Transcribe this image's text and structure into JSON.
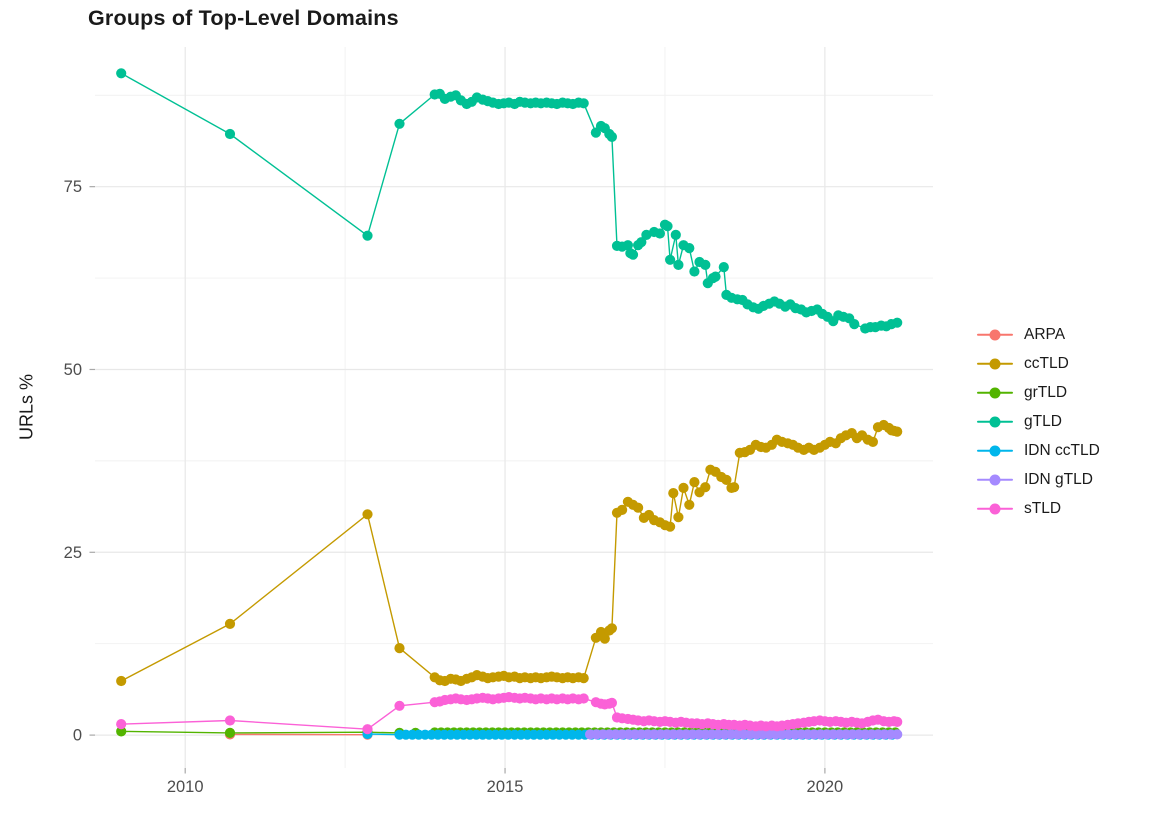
{
  "title": "Groups of Top-Level Domains",
  "chart_data": {
    "type": "line",
    "title": "Groups of Top-Level Domains",
    "xlabel": "",
    "ylabel": "URLs %",
    "grid": true,
    "legend_position": "right",
    "x_range": [
      2008.59,
      2021.69
    ],
    "y_range": [
      -4.5,
      94.1
    ],
    "x_major_ticks": [
      2010,
      2015,
      2020
    ],
    "x_tick_labels": [
      "2010",
      "2015",
      "2020"
    ],
    "x_minor_gridlines": [
      2012.5,
      2017.5
    ],
    "y_major_ticks": [
      0,
      25,
      50,
      75
    ],
    "y_tick_labels": [
      "0",
      "25",
      "50",
      "75"
    ],
    "y_minor_gridlines": [
      12.5,
      37.5,
      62.5,
      87.5
    ],
    "grid_major_color": "#e8e8e8",
    "grid_minor_color": "#f1f1f1",
    "tick_color": "#a8a8a8",
    "tick_label_color": "#4d4d4d",
    "series": [
      {
        "name": "ARPA",
        "color": "#F8766D",
        "points": [
          [
            2010.7,
            0.1
          ],
          [
            2012.85,
            0.05
          ]
        ]
      },
      {
        "name": "ccTLD",
        "color": "#C49A00",
        "points": [
          [
            2009.0,
            7.4
          ],
          [
            2010.7,
            15.2
          ],
          [
            2012.85,
            30.2
          ],
          [
            2013.35,
            11.9
          ],
          [
            2013.9,
            7.9
          ],
          [
            2013.98,
            7.5
          ],
          [
            2014.06,
            7.4
          ],
          [
            2014.15,
            7.7
          ],
          [
            2014.23,
            7.6
          ],
          [
            2014.31,
            7.4
          ],
          [
            2014.4,
            7.7
          ],
          [
            2014.48,
            7.9
          ],
          [
            2014.56,
            8.2
          ],
          [
            2014.65,
            8.0
          ],
          [
            2014.73,
            7.8
          ],
          [
            2014.81,
            7.9
          ],
          [
            2014.9,
            8.0
          ],
          [
            2014.98,
            8.1
          ],
          [
            2015.06,
            7.9
          ],
          [
            2015.15,
            8.0
          ],
          [
            2015.23,
            7.8
          ],
          [
            2015.31,
            7.9
          ],
          [
            2015.4,
            7.8
          ],
          [
            2015.48,
            7.9
          ],
          [
            2015.56,
            7.8
          ],
          [
            2015.65,
            7.9
          ],
          [
            2015.73,
            8.0
          ],
          [
            2015.81,
            7.9
          ],
          [
            2015.9,
            7.8
          ],
          [
            2015.98,
            7.9
          ],
          [
            2016.06,
            7.8
          ],
          [
            2016.15,
            7.9
          ],
          [
            2016.23,
            7.8
          ],
          [
            2016.42,
            13.3
          ],
          [
            2016.5,
            14.1
          ],
          [
            2016.56,
            13.2
          ],
          [
            2016.63,
            14.3
          ],
          [
            2016.67,
            14.6
          ],
          [
            2016.75,
            30.4
          ],
          [
            2016.83,
            30.8
          ],
          [
            2016.92,
            31.9
          ],
          [
            2017.0,
            31.5
          ],
          [
            2017.08,
            31.1
          ],
          [
            2017.17,
            29.7
          ],
          [
            2017.25,
            30.1
          ],
          [
            2017.33,
            29.4
          ],
          [
            2017.42,
            29.1
          ],
          [
            2017.5,
            28.7
          ],
          [
            2017.58,
            28.5
          ],
          [
            2017.63,
            33.1
          ],
          [
            2017.71,
            29.8
          ],
          [
            2017.79,
            33.8
          ],
          [
            2017.88,
            31.5
          ],
          [
            2017.96,
            34.6
          ],
          [
            2018.04,
            33.2
          ],
          [
            2018.13,
            33.9
          ],
          [
            2018.21,
            36.3
          ],
          [
            2018.29,
            36.0
          ],
          [
            2018.38,
            35.3
          ],
          [
            2018.46,
            34.9
          ],
          [
            2018.54,
            33.8
          ],
          [
            2018.58,
            33.9
          ],
          [
            2018.67,
            38.6
          ],
          [
            2018.75,
            38.7
          ],
          [
            2018.83,
            39.0
          ],
          [
            2018.92,
            39.7
          ],
          [
            2019.0,
            39.4
          ],
          [
            2019.08,
            39.3
          ],
          [
            2019.17,
            39.7
          ],
          [
            2019.25,
            40.4
          ],
          [
            2019.33,
            40.1
          ],
          [
            2019.42,
            39.9
          ],
          [
            2019.5,
            39.7
          ],
          [
            2019.58,
            39.3
          ],
          [
            2019.67,
            39.0
          ],
          [
            2019.75,
            39.3
          ],
          [
            2019.83,
            39.0
          ],
          [
            2019.92,
            39.3
          ],
          [
            2020.0,
            39.7
          ],
          [
            2020.08,
            40.1
          ],
          [
            2020.17,
            39.9
          ],
          [
            2020.25,
            40.6
          ],
          [
            2020.33,
            41.0
          ],
          [
            2020.42,
            41.3
          ],
          [
            2020.5,
            40.6
          ],
          [
            2020.58,
            41.0
          ],
          [
            2020.67,
            40.4
          ],
          [
            2020.75,
            40.1
          ],
          [
            2020.83,
            42.1
          ],
          [
            2020.92,
            42.4
          ],
          [
            2021.0,
            42.0
          ],
          [
            2021.04,
            41.7
          ],
          [
            2021.08,
            41.6
          ],
          [
            2021.13,
            41.5
          ]
        ]
      },
      {
        "name": "grTLD",
        "color": "#53B400",
        "points": [
          [
            2009.0,
            0.5
          ],
          [
            2010.7,
            0.3
          ],
          [
            2012.85,
            0.4
          ],
          [
            2013.35,
            0.3
          ],
          [
            2013.6,
            0.3
          ]
        ],
        "runs": [
          {
            "x0": 2013.9,
            "x1": 2021.13,
            "step": 0.1,
            "y": 0.35
          }
        ]
      },
      {
        "name": "gTLD",
        "color": "#00C094",
        "points": [
          [
            2009.0,
            90.5
          ],
          [
            2010.7,
            82.2
          ],
          [
            2012.85,
            68.3
          ],
          [
            2013.35,
            83.6
          ],
          [
            2013.9,
            87.6
          ],
          [
            2013.98,
            87.7
          ],
          [
            2014.06,
            87.0
          ],
          [
            2014.15,
            87.3
          ],
          [
            2014.23,
            87.5
          ],
          [
            2014.31,
            86.8
          ],
          [
            2014.4,
            86.3
          ],
          [
            2014.48,
            86.6
          ],
          [
            2014.56,
            87.2
          ],
          [
            2014.65,
            86.9
          ],
          [
            2014.73,
            86.7
          ],
          [
            2014.81,
            86.5
          ],
          [
            2014.9,
            86.3
          ],
          [
            2014.98,
            86.4
          ],
          [
            2015.06,
            86.5
          ],
          [
            2015.15,
            86.3
          ],
          [
            2015.23,
            86.6
          ],
          [
            2015.31,
            86.5
          ],
          [
            2015.4,
            86.4
          ],
          [
            2015.48,
            86.5
          ],
          [
            2015.56,
            86.4
          ],
          [
            2015.65,
            86.5
          ],
          [
            2015.73,
            86.4
          ],
          [
            2015.81,
            86.3
          ],
          [
            2015.9,
            86.5
          ],
          [
            2015.98,
            86.4
          ],
          [
            2016.06,
            86.3
          ],
          [
            2016.15,
            86.5
          ],
          [
            2016.23,
            86.4
          ],
          [
            2016.42,
            82.4
          ],
          [
            2016.5,
            83.3
          ],
          [
            2016.56,
            83.0
          ],
          [
            2016.63,
            82.2
          ],
          [
            2016.67,
            81.8
          ],
          [
            2016.75,
            66.9
          ],
          [
            2016.83,
            66.8
          ],
          [
            2016.92,
            67.0
          ],
          [
            2016.96,
            65.9
          ],
          [
            2017.0,
            65.7
          ],
          [
            2017.08,
            67.0
          ],
          [
            2017.13,
            67.4
          ],
          [
            2017.21,
            68.4
          ],
          [
            2017.33,
            68.8
          ],
          [
            2017.42,
            68.6
          ],
          [
            2017.5,
            69.8
          ],
          [
            2017.54,
            69.6
          ],
          [
            2017.58,
            65.0
          ],
          [
            2017.67,
            68.4
          ],
          [
            2017.71,
            64.3
          ],
          [
            2017.79,
            67.0
          ],
          [
            2017.88,
            66.6
          ],
          [
            2017.96,
            63.4
          ],
          [
            2018.04,
            64.7
          ],
          [
            2018.13,
            64.3
          ],
          [
            2018.17,
            61.8
          ],
          [
            2018.25,
            62.5
          ],
          [
            2018.29,
            62.7
          ],
          [
            2018.42,
            64.0
          ],
          [
            2018.46,
            60.2
          ],
          [
            2018.54,
            59.8
          ],
          [
            2018.63,
            59.6
          ],
          [
            2018.71,
            59.5
          ],
          [
            2018.79,
            58.9
          ],
          [
            2018.88,
            58.5
          ],
          [
            2018.96,
            58.3
          ],
          [
            2019.04,
            58.7
          ],
          [
            2019.13,
            59.0
          ],
          [
            2019.21,
            59.3
          ],
          [
            2019.29,
            59.0
          ],
          [
            2019.38,
            58.6
          ],
          [
            2019.46,
            58.9
          ],
          [
            2019.54,
            58.4
          ],
          [
            2019.63,
            58.2
          ],
          [
            2019.71,
            57.8
          ],
          [
            2019.79,
            58.0
          ],
          [
            2019.88,
            58.2
          ],
          [
            2019.96,
            57.6
          ],
          [
            2020.04,
            57.2
          ],
          [
            2020.13,
            56.6
          ],
          [
            2020.21,
            57.4
          ],
          [
            2020.29,
            57.2
          ],
          [
            2020.38,
            57.0
          ],
          [
            2020.46,
            56.2
          ],
          [
            2020.63,
            55.6
          ],
          [
            2020.71,
            55.8
          ],
          [
            2020.79,
            55.8
          ],
          [
            2020.88,
            56.0
          ],
          [
            2020.96,
            55.9
          ],
          [
            2021.04,
            56.2
          ],
          [
            2021.13,
            56.4
          ]
        ]
      },
      {
        "name": "IDN ccTLD",
        "color": "#00B6EB",
        "points": [
          [
            2012.85,
            0.15
          ]
        ],
        "runs": [
          {
            "x0": 2013.35,
            "x1": 2021.13,
            "step": 0.1,
            "y": 0.05
          }
        ]
      },
      {
        "name": "IDN gTLD",
        "color": "#A58AFF",
        "runs": [
          {
            "x0": 2016.33,
            "x1": 2021.13,
            "step": 0.1,
            "y": 0.1
          }
        ]
      },
      {
        "name": "sTLD",
        "color": "#FB61D7",
        "points": [
          [
            2009.0,
            1.5
          ],
          [
            2010.7,
            2.0
          ],
          [
            2012.85,
            0.8
          ],
          [
            2013.35,
            4.0
          ],
          [
            2013.9,
            4.5
          ],
          [
            2013.98,
            4.6
          ],
          [
            2014.06,
            4.8
          ],
          [
            2014.15,
            4.9
          ],
          [
            2014.23,
            5.0
          ],
          [
            2014.31,
            4.9
          ],
          [
            2014.4,
            4.8
          ],
          [
            2014.48,
            4.9
          ],
          [
            2014.56,
            5.0
          ],
          [
            2014.65,
            5.1
          ],
          [
            2014.73,
            5.0
          ],
          [
            2014.81,
            4.9
          ],
          [
            2014.9,
            5.0
          ],
          [
            2014.98,
            5.1
          ],
          [
            2015.06,
            5.2
          ],
          [
            2015.15,
            5.1
          ],
          [
            2015.23,
            5.0
          ],
          [
            2015.31,
            5.1
          ],
          [
            2015.4,
            5.0
          ],
          [
            2015.48,
            4.9
          ],
          [
            2015.56,
            5.0
          ],
          [
            2015.65,
            4.9
          ],
          [
            2015.73,
            5.0
          ],
          [
            2015.81,
            4.9
          ],
          [
            2015.9,
            5.0
          ],
          [
            2015.98,
            4.9
          ],
          [
            2016.06,
            5.0
          ],
          [
            2016.15,
            4.9
          ],
          [
            2016.23,
            5.0
          ],
          [
            2016.42,
            4.5
          ],
          [
            2016.5,
            4.3
          ],
          [
            2016.56,
            4.2
          ],
          [
            2016.63,
            4.3
          ],
          [
            2016.67,
            4.4
          ],
          [
            2016.75,
            2.4
          ],
          [
            2016.83,
            2.3
          ],
          [
            2016.92,
            2.2
          ],
          [
            2017.0,
            2.1
          ],
          [
            2017.08,
            2.0
          ],
          [
            2017.17,
            1.9
          ],
          [
            2017.25,
            2.0
          ],
          [
            2017.33,
            1.9
          ],
          [
            2017.42,
            1.8
          ],
          [
            2017.5,
            1.9
          ],
          [
            2017.58,
            1.8
          ],
          [
            2017.67,
            1.7
          ],
          [
            2017.75,
            1.8
          ],
          [
            2017.83,
            1.7
          ],
          [
            2017.92,
            1.6
          ],
          [
            2018.0,
            1.6
          ],
          [
            2018.08,
            1.5
          ],
          [
            2018.17,
            1.6
          ],
          [
            2018.25,
            1.5
          ],
          [
            2018.33,
            1.4
          ],
          [
            2018.42,
            1.5
          ],
          [
            2018.5,
            1.4
          ],
          [
            2018.58,
            1.4
          ],
          [
            2018.67,
            1.3
          ],
          [
            2018.75,
            1.4
          ],
          [
            2018.83,
            1.3
          ],
          [
            2018.92,
            1.2
          ],
          [
            2019.0,
            1.3
          ],
          [
            2019.08,
            1.2
          ],
          [
            2019.17,
            1.3
          ],
          [
            2019.25,
            1.2
          ],
          [
            2019.33,
            1.3
          ],
          [
            2019.42,
            1.4
          ],
          [
            2019.5,
            1.5
          ],
          [
            2019.58,
            1.6
          ],
          [
            2019.67,
            1.7
          ],
          [
            2019.75,
            1.8
          ],
          [
            2019.83,
            1.9
          ],
          [
            2019.92,
            2.0
          ],
          [
            2020.0,
            1.9
          ],
          [
            2020.08,
            1.8
          ],
          [
            2020.17,
            1.9
          ],
          [
            2020.25,
            1.8
          ],
          [
            2020.33,
            1.7
          ],
          [
            2020.42,
            1.8
          ],
          [
            2020.5,
            1.7
          ],
          [
            2020.58,
            1.6
          ],
          [
            2020.67,
            1.8
          ],
          [
            2020.75,
            2.0
          ],
          [
            2020.83,
            2.1
          ],
          [
            2020.92,
            1.9
          ],
          [
            2021.0,
            1.8
          ],
          [
            2021.08,
            1.9
          ],
          [
            2021.13,
            1.8
          ]
        ]
      }
    ]
  }
}
